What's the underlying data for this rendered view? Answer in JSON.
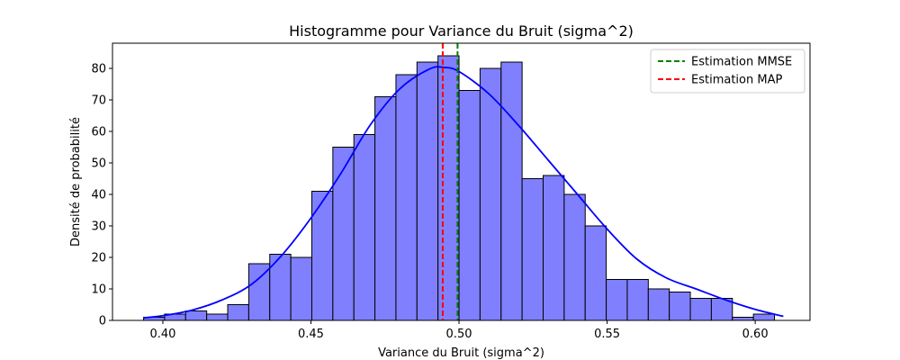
{
  "chart_data": {
    "type": "bar",
    "title": "Histogramme pour Variance du Bruit (sigma^2)",
    "xlabel": "Variance du Bruit (sigma^2)",
    "ylabel": "Densité de probabilité",
    "xlim": [
      0.383,
      0.6185
    ],
    "ylim": [
      0,
      88
    ],
    "xticks": [
      0.4,
      0.45,
      0.5,
      0.55,
      0.6
    ],
    "xtick_labels": [
      "0.40",
      "0.45",
      "0.50",
      "0.55",
      "0.60"
    ],
    "yticks": [
      0,
      10,
      20,
      30,
      40,
      50,
      60,
      70,
      80
    ],
    "ytick_labels": [
      "0",
      "10",
      "20",
      "30",
      "40",
      "50",
      "60",
      "70",
      "80"
    ],
    "grid": false,
    "legend_position": "top-right",
    "bins": {
      "edges": [
        0.3935,
        0.4006,
        0.4077,
        0.4148,
        0.4219,
        0.429,
        0.4361,
        0.4432,
        0.4503,
        0.4574,
        0.4645,
        0.4716,
        0.4787,
        0.4858,
        0.4929,
        0.5,
        0.5071,
        0.5142,
        0.5213,
        0.5284,
        0.5355,
        0.5426,
        0.5497,
        0.5568,
        0.5639,
        0.571,
        0.5781,
        0.5852,
        0.5923,
        0.5994,
        0.6065
      ],
      "counts": [
        1,
        2,
        3,
        2,
        5,
        18,
        21,
        20,
        41,
        55,
        59,
        71,
        78,
        82,
        84,
        73,
        80,
        82,
        45,
        46,
        40,
        30,
        13,
        13,
        10,
        9,
        7,
        7,
        1,
        2
      ],
      "fill_color": "#8080ff",
      "edge_color": "#000000"
    },
    "kde": {
      "color": "#0000ff",
      "x": [
        0.3935,
        0.4,
        0.41,
        0.42,
        0.43,
        0.44,
        0.45,
        0.46,
        0.47,
        0.48,
        0.49,
        0.495,
        0.5,
        0.51,
        0.52,
        0.53,
        0.54,
        0.55,
        0.56,
        0.57,
        0.58,
        0.59,
        0.6,
        0.6095
      ],
      "y": [
        0.8,
        1.5,
        3.3,
        6.5,
        11.5,
        20.5,
        32.5,
        46.5,
        62.0,
        73.5,
        79.8,
        80.3,
        79.0,
        72.0,
        62.0,
        51.0,
        40.0,
        29.0,
        19.5,
        13.5,
        10.0,
        6.5,
        3.5,
        1.3
      ]
    },
    "series": [
      {
        "name": "Estimation MMSE",
        "x": 0.4995,
        "color": "#008000",
        "style": "dashed"
      },
      {
        "name": "Estimation MAP",
        "x": 0.4945,
        "color": "#ff0000",
        "style": "dashed"
      }
    ]
  }
}
